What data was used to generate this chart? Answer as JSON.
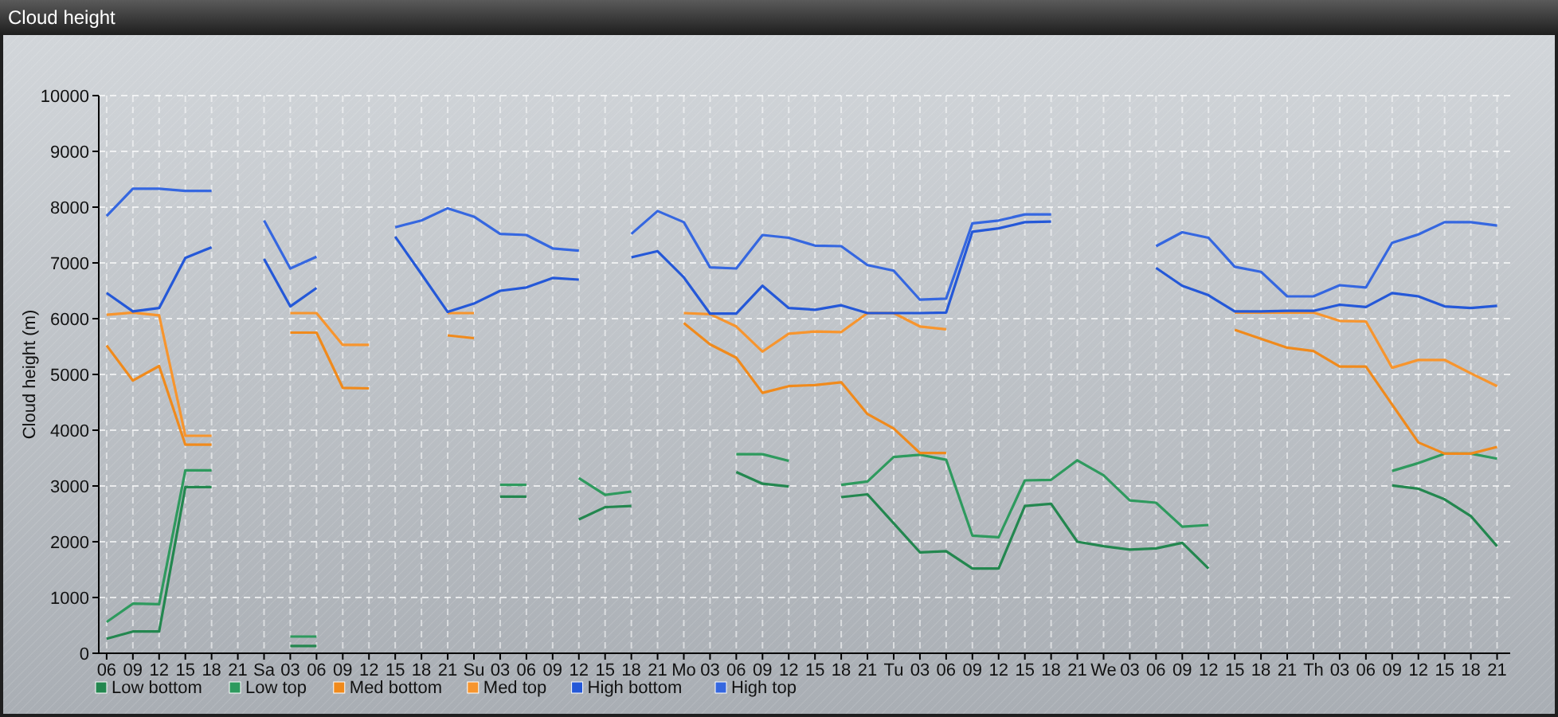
{
  "chart_data": {
    "type": "line",
    "title": "Cloud height",
    "ylabel": "Cloud height (m)",
    "categories": [
      "06",
      "09",
      "12",
      "15",
      "18",
      "21",
      "Sa",
      "03",
      "06",
      "09",
      "12",
      "15",
      "18",
      "21",
      "Su",
      "03",
      "06",
      "09",
      "12",
      "15",
      "18",
      "21",
      "Mo",
      "03",
      "06",
      "09",
      "12",
      "15",
      "18",
      "21",
      "Tu",
      "03",
      "06",
      "09",
      "12",
      "15",
      "18",
      "21",
      "We",
      "03",
      "06",
      "09",
      "12",
      "15",
      "18",
      "21",
      "Th",
      "03",
      "06",
      "09",
      "12",
      "15",
      "18",
      "21"
    ],
    "ylim": [
      0,
      10000
    ],
    "yticks": [
      0,
      1000,
      2000,
      3000,
      4000,
      5000,
      6000,
      7000,
      8000,
      9000,
      10000
    ],
    "grid": true,
    "legend": "bottom",
    "marker": "none",
    "line_style": "solid",
    "series": [
      {
        "name": "Low bottom",
        "color": "#23874f",
        "values": [
          260,
          390,
          390,
          2980,
          2980,
          null,
          null,
          130,
          130,
          null,
          null,
          null,
          null,
          null,
          null,
          2810,
          2810,
          null,
          2400,
          2620,
          2640,
          null,
          null,
          null,
          3250,
          3040,
          2990,
          null,
          2800,
          2850,
          2330,
          1810,
          1830,
          1520,
          1520,
          2640,
          2680,
          2000,
          1920,
          1860,
          1880,
          1980,
          1520,
          null,
          null,
          null,
          null,
          null,
          null,
          3010,
          2950,
          2760,
          2460,
          1920
        ]
      },
      {
        "name": "Low top",
        "color": "#2e9a5e",
        "values": [
          560,
          890,
          880,
          3280,
          3280,
          null,
          null,
          300,
          300,
          null,
          null,
          null,
          null,
          null,
          null,
          3020,
          3020,
          null,
          3140,
          2840,
          2900,
          null,
          null,
          null,
          3570,
          3570,
          3450,
          null,
          3020,
          3080,
          3520,
          3560,
          3470,
          2110,
          2080,
          3100,
          3110,
          3460,
          3190,
          2740,
          2700,
          2270,
          2300,
          null,
          null,
          null,
          null,
          null,
          null,
          3270,
          3410,
          3580,
          3580,
          3490
        ]
      },
      {
        "name": "Med bottom",
        "color": "#f08a1c",
        "values": [
          5520,
          4890,
          5150,
          3740,
          3740,
          null,
          null,
          5750,
          5750,
          4760,
          4750,
          null,
          null,
          5700,
          5650,
          null,
          null,
          null,
          null,
          null,
          null,
          null,
          5920,
          5540,
          5300,
          4670,
          4790,
          4810,
          4860,
          4290,
          4030,
          3590,
          3590,
          null,
          null,
          null,
          null,
          null,
          null,
          null,
          null,
          null,
          null,
          5800,
          5640,
          5480,
          5420,
          5140,
          5140,
          4460,
          3780,
          3580,
          3580,
          3700
        ]
      },
      {
        "name": "Med top",
        "color": "#f7952e",
        "values": [
          6070,
          6110,
          6060,
          3900,
          3900,
          null,
          null,
          6100,
          6100,
          5530,
          5530,
          null,
          null,
          6100,
          6100,
          null,
          null,
          null,
          null,
          null,
          null,
          null,
          6100,
          6080,
          5860,
          5410,
          5730,
          5770,
          5760,
          6100,
          6100,
          5860,
          5810,
          null,
          null,
          null,
          null,
          null,
          null,
          null,
          null,
          null,
          null,
          6110,
          6110,
          6110,
          6110,
          5960,
          5950,
          5120,
          5260,
          5260,
          5020,
          4790
        ]
      },
      {
        "name": "High bottom",
        "color": "#2458d8",
        "values": [
          6460,
          6130,
          6190,
          7090,
          7280,
          null,
          7070,
          6220,
          6550,
          null,
          null,
          7470,
          6800,
          6120,
          6270,
          6500,
          6560,
          6730,
          6700,
          null,
          7100,
          7210,
          6740,
          6090,
          6090,
          6590,
          6190,
          6160,
          6240,
          6100,
          6100,
          6100,
          6110,
          7560,
          7620,
          7730,
          7740,
          null,
          null,
          null,
          6910,
          6590,
          6420,
          6130,
          6130,
          6140,
          6140,
          6250,
          6210,
          6460,
          6400,
          6220,
          6190,
          6230
        ]
      },
      {
        "name": "High top",
        "color": "#3567e0",
        "values": [
          7840,
          8330,
          8330,
          8290,
          8290,
          null,
          7760,
          6900,
          7110,
          null,
          null,
          7640,
          7760,
          7980,
          7830,
          7520,
          7500,
          7260,
          7220,
          null,
          7520,
          7930,
          7730,
          6920,
          6900,
          7500,
          7450,
          7310,
          7300,
          6960,
          6860,
          6340,
          6360,
          7710,
          7760,
          7870,
          7870,
          null,
          null,
          null,
          7300,
          7550,
          7450,
          6930,
          6840,
          6400,
          6400,
          6600,
          6560,
          7360,
          7510,
          7730,
          7730,
          7670
        ]
      }
    ]
  }
}
